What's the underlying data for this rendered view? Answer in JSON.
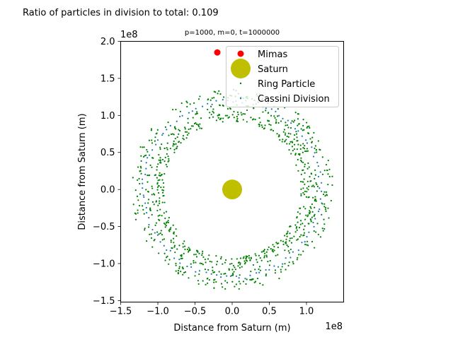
{
  "figure": {
    "suptitle": "Ratio of particles in division to total: 0.109"
  },
  "chart_data": {
    "type": "scatter",
    "title": "p=1000, m=0, t=1000000",
    "xlabel": "Distance from Saturn (m)",
    "ylabel": "Distance from Saturn (m)",
    "x_offset_label": "1e8",
    "y_offset_label": "1e8",
    "xlim": [
      -1.5,
      1.5
    ],
    "ylim": [
      -1.52,
      2.0
    ],
    "axis_scale": 100000000.0,
    "xticks": [
      -1.5,
      -1.0,
      -0.5,
      0.0,
      0.5,
      1.0
    ],
    "xtick_labels": [
      "−1.5",
      "−1.0",
      "−0.5",
      "0.0",
      "0.5",
      "1.0"
    ],
    "yticks": [
      -1.5,
      -1.0,
      -0.5,
      0.0,
      0.5,
      1.0,
      1.5,
      2.0
    ],
    "ytick_labels": [
      "−1.5",
      "−1.0",
      "−0.5",
      "0.0",
      "0.5",
      "1.0",
      "1.5",
      "2.0"
    ],
    "grid": false,
    "legend_position": "top-right",
    "legend": [
      {
        "label": "Mimas",
        "marker": "circle",
        "color": "#ff0000"
      },
      {
        "label": "Saturn",
        "marker": "circle-large",
        "color": "#bfbf00"
      },
      {
        "label": "Ring Particle",
        "marker": "dot",
        "color": "#008000"
      },
      {
        "label": "Cassini Division",
        "marker": "dot",
        "color": "#1f77b4"
      }
    ],
    "series": [
      {
        "name": "Mimas",
        "color": "#ff0000",
        "points": [
          [
            -0.2,
            1.85
          ]
        ]
      },
      {
        "name": "Saturn",
        "color": "#bfbf00",
        "points": [
          [
            0.0,
            0.0
          ]
        ]
      },
      {
        "name": "Ring Particle",
        "color": "#008000",
        "count": 891,
        "radial_range": [
          0.92,
          1.36
        ]
      },
      {
        "name": "Cassini Division",
        "color": "#1f77b4",
        "count": 109,
        "radial_range": [
          1.17,
          1.22
        ]
      }
    ],
    "ratio_in_division": 0.109
  }
}
